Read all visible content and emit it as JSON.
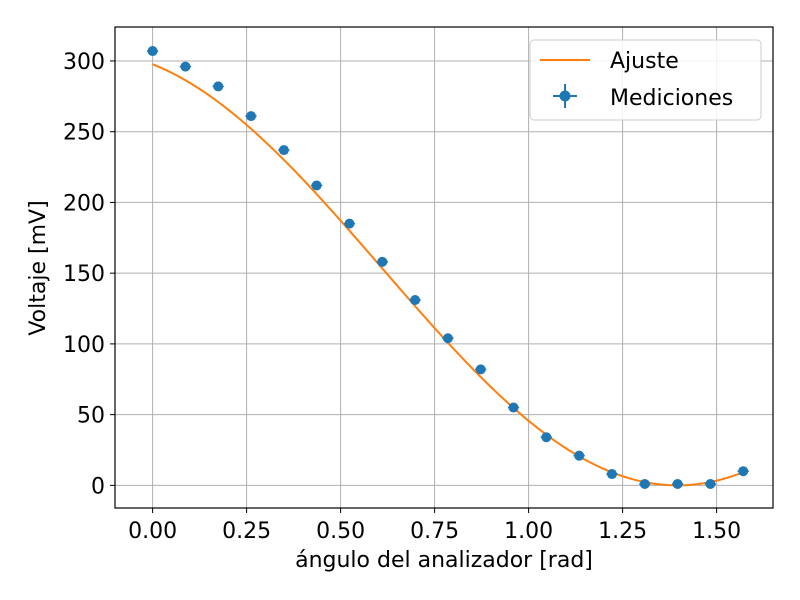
{
  "chart_data": {
    "type": "scatter",
    "xlabel": "ángulo del analizador [rad]",
    "ylabel": "Voltaje [mV]",
    "xlim": [
      -0.1,
      1.65
    ],
    "ylim": [
      -16,
      324
    ],
    "xticks": [
      0.0,
      0.25,
      0.5,
      0.75,
      1.0,
      1.25,
      1.5
    ],
    "xtick_labels": [
      "0.00",
      "0.25",
      "0.50",
      "0.75",
      "1.00",
      "1.25",
      "1.50"
    ],
    "yticks": [
      0,
      50,
      100,
      150,
      200,
      250,
      300
    ],
    "ytick_labels": [
      "0",
      "50",
      "100",
      "150",
      "200",
      "250",
      "300"
    ],
    "grid": true,
    "legend_position": "top-right",
    "series": [
      {
        "name": "Mediciones",
        "kind": "errorbar",
        "color": "#1f77b4",
        "x": [
          0.0,
          0.0873,
          0.1745,
          0.2618,
          0.3491,
          0.4363,
          0.5236,
          0.6109,
          0.6981,
          0.7854,
          0.8727,
          0.9599,
          1.0472,
          1.1345,
          1.2217,
          1.309,
          1.3963,
          1.4835,
          1.5708
        ],
        "y": [
          307,
          296,
          282,
          261,
          237,
          212,
          185,
          158,
          131,
          104,
          82,
          55,
          34,
          21,
          8,
          1,
          1,
          1,
          10
        ],
        "xerr": 0.015,
        "yerr": 2
      },
      {
        "name": "Ajuste",
        "kind": "line",
        "color": "#ff7f0e",
        "model": "y = A*cos^2(x - phi) + C",
        "params": {
          "A": 307.0,
          "phi": -0.175,
          "C": 0.0
        },
        "x_range": [
          0.0,
          1.5708
        ]
      }
    ]
  }
}
